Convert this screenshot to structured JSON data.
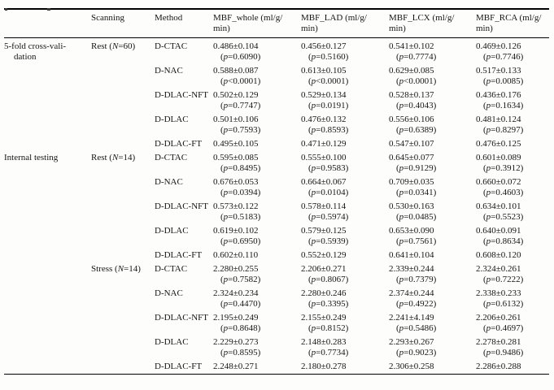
{
  "table": {
    "columns": [
      "",
      "Scanning",
      "Method",
      "MBF_whole (ml/g/\nmin)",
      "MBF_LAD (ml/g/\nmin)",
      "MBF_LCX (ml/g/\nmin)",
      "MBF_RCA (ml/g/\nmin)"
    ],
    "groups": [
      {
        "group_label": "5-fold cross-vali-\ndation",
        "scans": [
          {
            "scan_label": "Rest (N=60)",
            "rows": [
              {
                "method": "D-CTAC",
                "cells": [
                  {
                    "v": "0.486±0.104",
                    "p": "(p=0.6090)"
                  },
                  {
                    "v": "0.456±0.127",
                    "p": "(p=0.5160)"
                  },
                  {
                    "v": "0.541±0.102",
                    "p": "(p=0.7774)"
                  },
                  {
                    "v": "0.469±0.126",
                    "p": "(p=0.7746)"
                  }
                ]
              },
              {
                "method": "D-NAC",
                "cells": [
                  {
                    "v": "0.588±0.087",
                    "p": "(p<0.0001)"
                  },
                  {
                    "v": "0.613±0.105",
                    "p": "(p<0.0001)"
                  },
                  {
                    "v": "0.629±0.085",
                    "p": "(p<0.0001)"
                  },
                  {
                    "v": "0.517±0.133",
                    "p": "(p=0.0085)"
                  }
                ]
              },
              {
                "method": "D-DLAC-NFT",
                "cells": [
                  {
                    "v": "0.502±0.129",
                    "p": "(p=0.7747)"
                  },
                  {
                    "v": "0.529±0.134",
                    "p": "(p=0.0191)"
                  },
                  {
                    "v": "0.528±0.137",
                    "p": "(p=0.4043)"
                  },
                  {
                    "v": "0.436±0.176",
                    "p": "(p=0.1634)"
                  }
                ]
              },
              {
                "method": "D-DLAC",
                "cells": [
                  {
                    "v": "0.501±0.106",
                    "p": "(p=0.7593)"
                  },
                  {
                    "v": "0.476±0.132",
                    "p": "(p=0.8593)"
                  },
                  {
                    "v": "0.556±0.106",
                    "p": "(p=0.6389)"
                  },
                  {
                    "v": "0.481±0.124",
                    "p": "(p=0.8297)"
                  }
                ]
              },
              {
                "method": "D-DLAC-FT",
                "cells": [
                  {
                    "v": "0.495±0.105"
                  },
                  {
                    "v": "0.471±0.129"
                  },
                  {
                    "v": "0.547±0.107"
                  },
                  {
                    "v": "0.476±0.125"
                  }
                ]
              }
            ]
          }
        ]
      },
      {
        "group_label": "Internal testing",
        "scans": [
          {
            "scan_label": "Rest (N=14)",
            "rows": [
              {
                "method": "D-CTAC",
                "cells": [
                  {
                    "v": "0.595±0.085",
                    "p": "(p=0.8495)"
                  },
                  {
                    "v": "0.555±0.100",
                    "p": "(p=0.9583)"
                  },
                  {
                    "v": "0.645±0.077",
                    "p": "(p=0.9129)"
                  },
                  {
                    "v": "0.601±0.089",
                    "p": "(p=0.3912)"
                  }
                ]
              },
              {
                "method": "D-NAC",
                "cells": [
                  {
                    "v": "0.676±0.053",
                    "p": "(p=0.0394)"
                  },
                  {
                    "v": "0.664±0.067",
                    "p": "(p=0.0104)"
                  },
                  {
                    "v": "0.709±0.035",
                    "p": "(p=0.0341)"
                  },
                  {
                    "v": "0.660±0.072",
                    "p": "(p=0.4603)"
                  }
                ]
              },
              {
                "method": "D-DLAC-NFT",
                "cells": [
                  {
                    "v": "0.573±0.122",
                    "p": "(p=0.5183)"
                  },
                  {
                    "v": "0.578±0.114",
                    "p": "(p=0.5974)"
                  },
                  {
                    "v": "0.530±0.163",
                    "p": "(p=0.0485)"
                  },
                  {
                    "v": "0.634±0.101",
                    "p": "(p=0.5523)"
                  }
                ]
              },
              {
                "method": "D-DLAC",
                "cells": [
                  {
                    "v": "0.619±0.102",
                    "p": "(p=0.6950)"
                  },
                  {
                    "v": "0.579±0.125",
                    "p": "(p=0.5939)"
                  },
                  {
                    "v": "0.653±0.090",
                    "p": "(p=0.7561)"
                  },
                  {
                    "v": "0.640±0.091",
                    "p": "(p=0.8634)"
                  }
                ]
              },
              {
                "method": "D-DLAC-FT",
                "cells": [
                  {
                    "v": "0.602±0.110"
                  },
                  {
                    "v": "0.552±0.129"
                  },
                  {
                    "v": "0.641±0.104"
                  },
                  {
                    "v": "0.608±0.120"
                  }
                ]
              }
            ]
          },
          {
            "scan_label": "Stress (N=14)",
            "rows": [
              {
                "method": "D-CTAC",
                "cells": [
                  {
                    "v": "2.280±0.255",
                    "p": "(p=0.7582)"
                  },
                  {
                    "v": "2.206±0.271",
                    "p": "(p=0.8067)"
                  },
                  {
                    "v": "2.339±0.244",
                    "p": "(p=0.7379)"
                  },
                  {
                    "v": "2.324±0.261",
                    "p": "(p=0.7222)"
                  }
                ]
              },
              {
                "method": "D-NAC",
                "cells": [
                  {
                    "v": "2.324±0.234",
                    "p": "(p=0.4470)"
                  },
                  {
                    "v": "2.280±0.246",
                    "p": "(p=0.3395)"
                  },
                  {
                    "v": "2.374±0.244",
                    "p": "(p=0.4922)"
                  },
                  {
                    "v": "2.338±0.233",
                    "p": "(p=0.6132)"
                  }
                ]
              },
              {
                "method": "D-DLAC-NFT",
                "cells": [
                  {
                    "v": "2.195±0.249",
                    "p": "(p=0.8648)"
                  },
                  {
                    "v": "2.155±0.249",
                    "p": "(p=0.8152)"
                  },
                  {
                    "v": "2.241±4.149",
                    "p": "(p=0.5486)"
                  },
                  {
                    "v": "2.206±0.261",
                    "p": "(p=0.4697)"
                  }
                ]
              },
              {
                "method": "D-DLAC",
                "cells": [
                  {
                    "v": "2.229±0.273",
                    "p": "(p=0.8595)"
                  },
                  {
                    "v": "2.148±0.283",
                    "p": "(p=0.7734)"
                  },
                  {
                    "v": "2.293±0.267",
                    "p": "(p=0.9023)"
                  },
                  {
                    "v": "2.278±0.281",
                    "p": "(p=0.9486)"
                  }
                ]
              },
              {
                "method": "D-DLAC-FT",
                "cells": [
                  {
                    "v": "2.248±0.271"
                  },
                  {
                    "v": "2.180±0.278"
                  },
                  {
                    "v": "2.306±0.258"
                  },
                  {
                    "v": "2.286±0.288"
                  }
                ]
              }
            ]
          }
        ]
      }
    ]
  }
}
